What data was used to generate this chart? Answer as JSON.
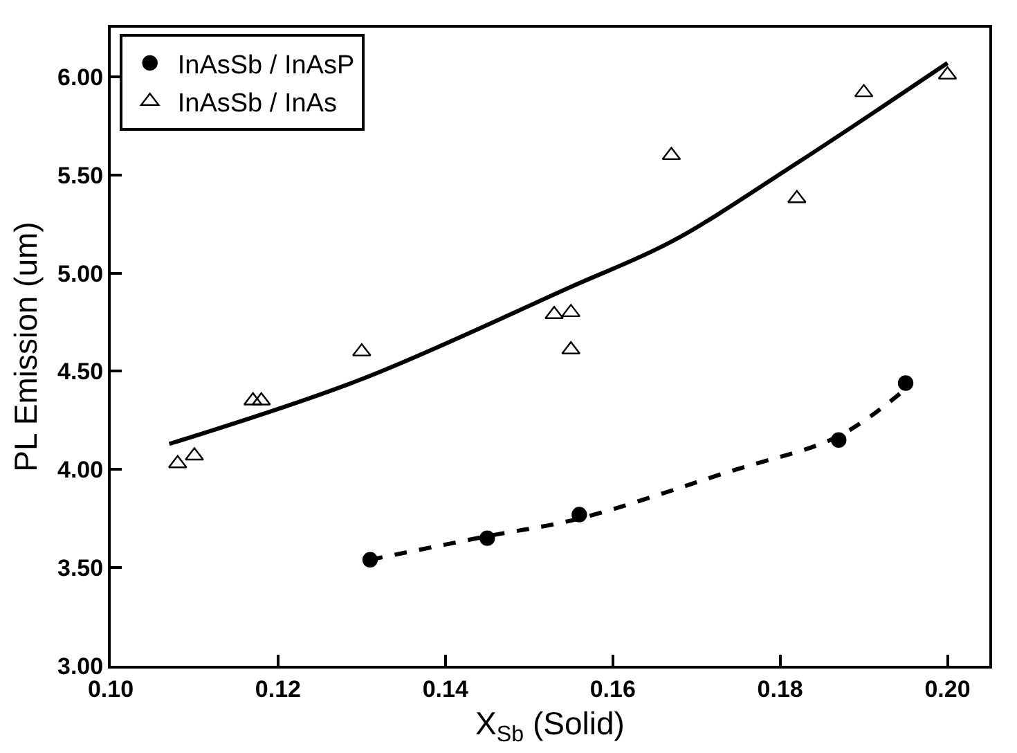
{
  "chart_data": {
    "type": "scatter",
    "xlabel": "X$_{Sb}$ (Solid)",
    "ylabel": "PL Emission (um)",
    "xlim": [
      0.1,
      0.205
    ],
    "ylim": [
      3.0,
      6.25
    ],
    "xticks": [
      {
        "value": 0.1,
        "label": "0.10"
      },
      {
        "value": 0.12,
        "label": "0.12"
      },
      {
        "value": 0.14,
        "label": "0.14"
      },
      {
        "value": 0.16,
        "label": "0.16"
      },
      {
        "value": 0.18,
        "label": "0.18"
      },
      {
        "value": 0.2,
        "label": "0.20"
      }
    ],
    "yticks": [
      {
        "value": 3,
        "label": "3.00"
      },
      {
        "value": 3.5,
        "label": "3.50"
      },
      {
        "value": 4,
        "label": "4.00"
      },
      {
        "value": 4.5,
        "label": "4.50"
      },
      {
        "value": 5,
        "label": "5.00"
      },
      {
        "value": 5.5,
        "label": "5.50"
      },
      {
        "value": 6,
        "label": "6.00"
      }
    ],
    "grid": false,
    "legend": "top left",
    "series": [
      {
        "name": "InAsSb / InAsP",
        "marker": "circle",
        "color": "#000000",
        "x": [
          0.131,
          0.145,
          0.156,
          0.187,
          0.195
        ],
        "values": [
          3.54,
          3.65,
          3.77,
          4.15,
          4.44
        ]
      },
      {
        "name": "InAsSb / InAs",
        "marker": "triangle",
        "color": "#000000",
        "x": [
          0.108,
          0.11,
          0.117,
          0.118,
          0.13,
          0.153,
          0.155,
          0.155,
          0.167,
          0.182,
          0.19,
          0.2
        ],
        "values": [
          4.03,
          4.07,
          4.35,
          4.35,
          4.6,
          4.79,
          4.8,
          4.61,
          5.6,
          5.38,
          5.92,
          6.01
        ]
      },
      {
        "type": "line",
        "line_style": "dashed",
        "color": "#000000",
        "x": [
          0.131,
          0.145,
          0.156,
          0.174,
          0.187,
          0.195
        ],
        "values": [
          3.54,
          3.66,
          3.75,
          3.99,
          4.17,
          4.41
        ]
      },
      {
        "type": "line",
        "line_style": "solid",
        "color": "#000000",
        "x": [
          0.107,
          0.13,
          0.155,
          0.167,
          0.182,
          0.2
        ],
        "values": [
          4.13,
          4.46,
          4.93,
          5.16,
          5.56,
          6.07
        ]
      }
    ]
  }
}
